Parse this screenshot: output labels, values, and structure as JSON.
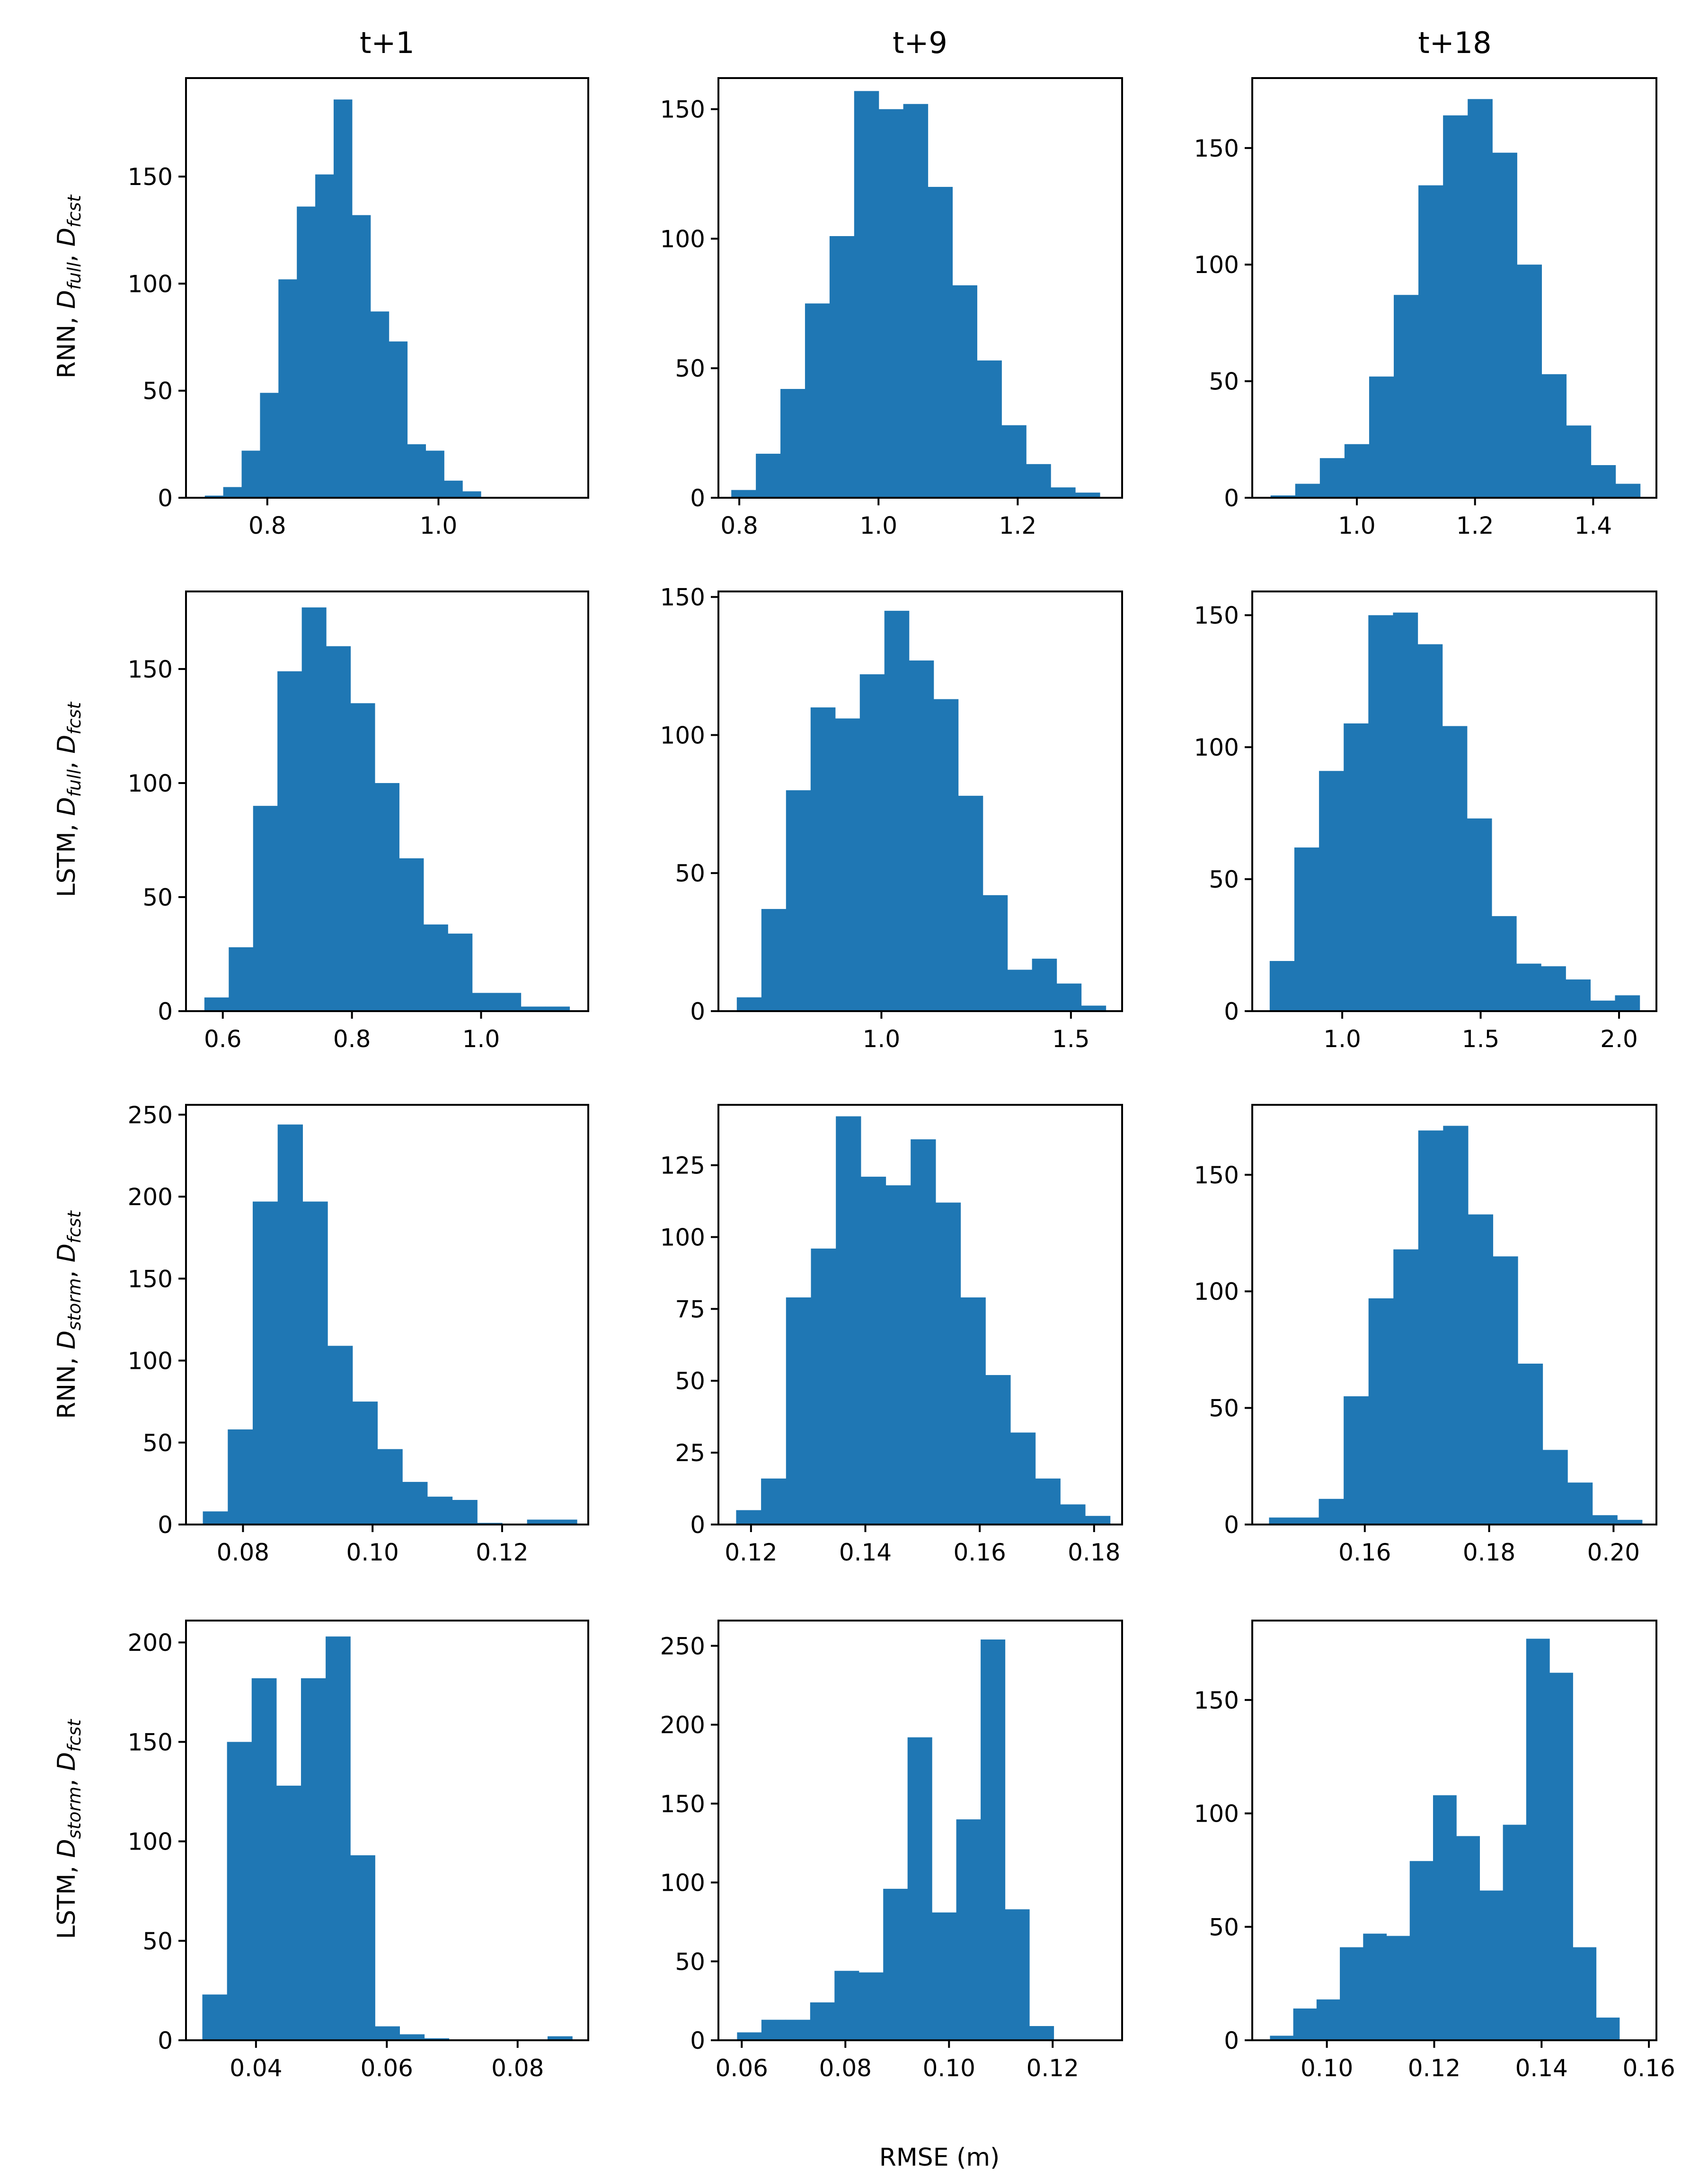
{
  "figure": {
    "xlabel": "RMSE (m)",
    "bar_color": "#1f77b4",
    "col_titles": [
      "t+1",
      "t+9",
      "t+18"
    ],
    "row_labels": [
      {
        "model": "RNN",
        "d1": "full",
        "d2": "fcst"
      },
      {
        "model": "LSTM",
        "d1": "full",
        "d2": "fcst"
      },
      {
        "model": "RNN",
        "d1": "storm",
        "d2": "fcst"
      },
      {
        "model": "LSTM",
        "d1": "storm",
        "d2": "fcst"
      }
    ]
  },
  "chart_data": [
    {
      "type": "histogram",
      "row": 0,
      "col": 0,
      "title": "t+1",
      "ylabel": "RNN, D_full, D_fcst",
      "xlim": [
        0.705,
        1.175
      ],
      "ylim": [
        0,
        196
      ],
      "xticks": [
        0.8,
        1.0
      ],
      "xtick_labels": [
        "0.8",
        "1.0"
      ],
      "yticks": [
        0,
        50,
        100,
        150
      ],
      "ytick_labels": [
        "0",
        "50",
        "100",
        "150"
      ],
      "bin_start": 0.727,
      "bin_width": 0.0215,
      "counts": [
        1,
        5,
        22,
        49,
        102,
        136,
        151,
        186,
        132,
        87,
        73,
        25,
        22,
        8,
        3
      ]
    },
    {
      "type": "histogram",
      "row": 0,
      "col": 1,
      "title": "t+9",
      "ylabel": "",
      "xlim": [
        0.77,
        1.35
      ],
      "ylim": [
        0,
        162
      ],
      "xticks": [
        0.8,
        1.0,
        1.2
      ],
      "xtick_labels": [
        "0.8",
        "1.0",
        "1.2"
      ],
      "yticks": [
        0,
        50,
        100,
        150
      ],
      "ytick_labels": [
        "0",
        "50",
        "100",
        "150"
      ],
      "bin_start": 0.7885,
      "bin_width": 0.0353,
      "counts": [
        3,
        17,
        42,
        75,
        101,
        157,
        150,
        152,
        120,
        82,
        53,
        28,
        13,
        4,
        2
      ]
    },
    {
      "type": "histogram",
      "row": 0,
      "col": 2,
      "title": "t+18",
      "ylabel": "",
      "xlim": [
        0.823,
        1.507
      ],
      "ylim": [
        0,
        180
      ],
      "xticks": [
        1.0,
        1.2,
        1.4
      ],
      "xtick_labels": [
        "1.0",
        "1.2",
        "1.4"
      ],
      "yticks": [
        0,
        50,
        100,
        150
      ],
      "ytick_labels": [
        "0",
        "50",
        "100",
        "150"
      ],
      "bin_start": 0.854,
      "bin_width": 0.0417,
      "counts": [
        1,
        6,
        17,
        23,
        52,
        87,
        134,
        164,
        171,
        148,
        100,
        53,
        31,
        14,
        6
      ]
    },
    {
      "type": "histogram",
      "row": 1,
      "col": 0,
      "title": "",
      "ylabel": "LSTM, D_full, D_fcst",
      "xlim": [
        0.543,
        1.166
      ],
      "ylim": [
        0,
        184
      ],
      "xticks": [
        0.6,
        0.8,
        1.0
      ],
      "xtick_labels": [
        "0.6",
        "0.8",
        "1.0"
      ],
      "yticks": [
        0,
        50,
        100,
        150
      ],
      "ytick_labels": [
        "0",
        "50",
        "100",
        "150"
      ],
      "bin_start": 0.5715,
      "bin_width": 0.0377,
      "counts": [
        6,
        28,
        90,
        149,
        177,
        160,
        135,
        100,
        67,
        38,
        34,
        8,
        8,
        2,
        2
      ]
    },
    {
      "type": "histogram",
      "row": 1,
      "col": 1,
      "title": "",
      "ylabel": "",
      "xlim": [
        0.57,
        1.635
      ],
      "ylim": [
        0,
        152
      ],
      "xticks": [
        1.0,
        1.5
      ],
      "xtick_labels": [
        "1.0",
        "1.5"
      ],
      "yticks": [
        0,
        50,
        100,
        150
      ],
      "ytick_labels": [
        "0",
        "50",
        "100",
        "150"
      ],
      "bin_start": 0.6185,
      "bin_width": 0.0649,
      "counts": [
        5,
        37,
        80,
        110,
        106,
        122,
        145,
        127,
        113,
        78,
        42,
        15,
        19,
        10,
        2
      ]
    },
    {
      "type": "histogram",
      "row": 1,
      "col": 2,
      "title": "",
      "ylabel": "",
      "xlim": [
        0.675,
        2.135
      ],
      "ylim": [
        0,
        159
      ],
      "xticks": [
        1.0,
        1.5,
        2.0
      ],
      "xtick_labels": [
        "1.0",
        "1.5",
        "2.0"
      ],
      "yticks": [
        0,
        50,
        100,
        150
      ],
      "ytick_labels": [
        "0",
        "50",
        "100",
        "150"
      ],
      "bin_start": 0.738,
      "bin_width": 0.0891,
      "counts": [
        19,
        62,
        91,
        109,
        150,
        151,
        139,
        108,
        73,
        36,
        18,
        17,
        12,
        4,
        6
      ]
    },
    {
      "type": "histogram",
      "row": 2,
      "col": 0,
      "title": "",
      "ylabel": "RNN, D_storm, D_fcst",
      "xlim": [
        0.0712,
        0.1333
      ],
      "ylim": [
        0,
        256
      ],
      "xticks": [
        0.08,
        0.1,
        0.12
      ],
      "xtick_labels": [
        "0.08",
        "0.10",
        "0.12"
      ],
      "yticks": [
        0,
        50,
        100,
        150,
        200,
        250
      ],
      "ytick_labels": [
        "0",
        "50",
        "100",
        "150",
        "200",
        "250"
      ],
      "bin_start": 0.0738,
      "bin_width": 0.00385,
      "counts": [
        8,
        58,
        197,
        244,
        197,
        109,
        75,
        46,
        26,
        17,
        15,
        1,
        0,
        3,
        3
      ]
    },
    {
      "type": "histogram",
      "row": 2,
      "col": 1,
      "title": "",
      "ylabel": "",
      "xlim": [
        0.1143,
        0.1849
      ],
      "ylim": [
        0,
        146
      ],
      "xticks": [
        0.12,
        0.14,
        0.16,
        0.18
      ],
      "xtick_labels": [
        "0.12",
        "0.14",
        "0.16",
        "0.18"
      ],
      "yticks": [
        0,
        25,
        50,
        75,
        100,
        125
      ],
      "ytick_labels": [
        "0",
        "25",
        "50",
        "75",
        "100",
        "125"
      ],
      "bin_start": 0.1174,
      "bin_width": 0.00436,
      "counts": [
        5,
        16,
        79,
        96,
        142,
        121,
        118,
        134,
        112,
        79,
        52,
        32,
        16,
        7,
        3
      ]
    },
    {
      "type": "histogram",
      "row": 2,
      "col": 2,
      "title": "",
      "ylabel": "",
      "xlim": [
        0.1419,
        0.2069
      ],
      "ylim": [
        0,
        180
      ],
      "xticks": [
        0.16,
        0.18,
        0.2
      ],
      "xtick_labels": [
        "0.16",
        "0.18",
        "0.20"
      ],
      "yticks": [
        0,
        50,
        100,
        150
      ],
      "ytick_labels": [
        "0",
        "50",
        "100",
        "150"
      ],
      "bin_start": 0.1446,
      "bin_width": 0.004,
      "counts": [
        3,
        3,
        11,
        55,
        97,
        118,
        169,
        171,
        133,
        115,
        69,
        32,
        18,
        4,
        2
      ]
    },
    {
      "type": "histogram",
      "row": 3,
      "col": 0,
      "title": "",
      "ylabel": "LSTM, D_storm, D_fcst",
      "xlim": [
        0.0293,
        0.0908
      ],
      "ylim": [
        0,
        211
      ],
      "xticks": [
        0.04,
        0.06,
        0.08
      ],
      "xtick_labels": [
        "0.04",
        "0.06",
        "0.08"
      ],
      "yticks": [
        0,
        50,
        100,
        150,
        200
      ],
      "ytick_labels": [
        "0",
        "50",
        "100",
        "150",
        "200"
      ],
      "bin_start": 0.0318,
      "bin_width": 0.00377,
      "counts": [
        23,
        150,
        182,
        128,
        182,
        203,
        93,
        7,
        3,
        1,
        0,
        0,
        0,
        0,
        2
      ]
    },
    {
      "type": "histogram",
      "row": 3,
      "col": 1,
      "title": "",
      "ylabel": "",
      "xlim": [
        0.0555,
        0.1334
      ],
      "ylim": [
        0,
        266
      ],
      "xticks": [
        0.06,
        0.08,
        0.1,
        0.12
      ],
      "xtick_labels": [
        "0.06",
        "0.08",
        "0.10",
        "0.12"
      ],
      "yticks": [
        0,
        50,
        100,
        150,
        200,
        250
      ],
      "ytick_labels": [
        "0",
        "50",
        "100",
        "150",
        "200",
        "250"
      ],
      "bin_start": 0.0591,
      "bin_width": 0.0047,
      "counts": [
        5,
        13,
        13,
        24,
        44,
        43,
        96,
        192,
        81,
        140,
        254,
        83,
        9,
        0,
        0
      ]
    },
    {
      "type": "histogram",
      "row": 3,
      "col": 2,
      "title": "",
      "ylabel": "",
      "xlim": [
        0.0861,
        0.1614
      ],
      "ylim": [
        0,
        185
      ],
      "xticks": [
        0.1,
        0.12,
        0.14,
        0.16
      ],
      "xtick_labels": [
        "0.10",
        "0.12",
        "0.14",
        "0.16"
      ],
      "yticks": [
        0,
        50,
        100,
        150
      ],
      "ytick_labels": [
        "0",
        "50",
        "100",
        "150"
      ],
      "bin_start": 0.0894,
      "bin_width": 0.00434,
      "counts": [
        2,
        14,
        18,
        41,
        47,
        46,
        79,
        108,
        90,
        66,
        95,
        177,
        162,
        41,
        10
      ]
    }
  ]
}
